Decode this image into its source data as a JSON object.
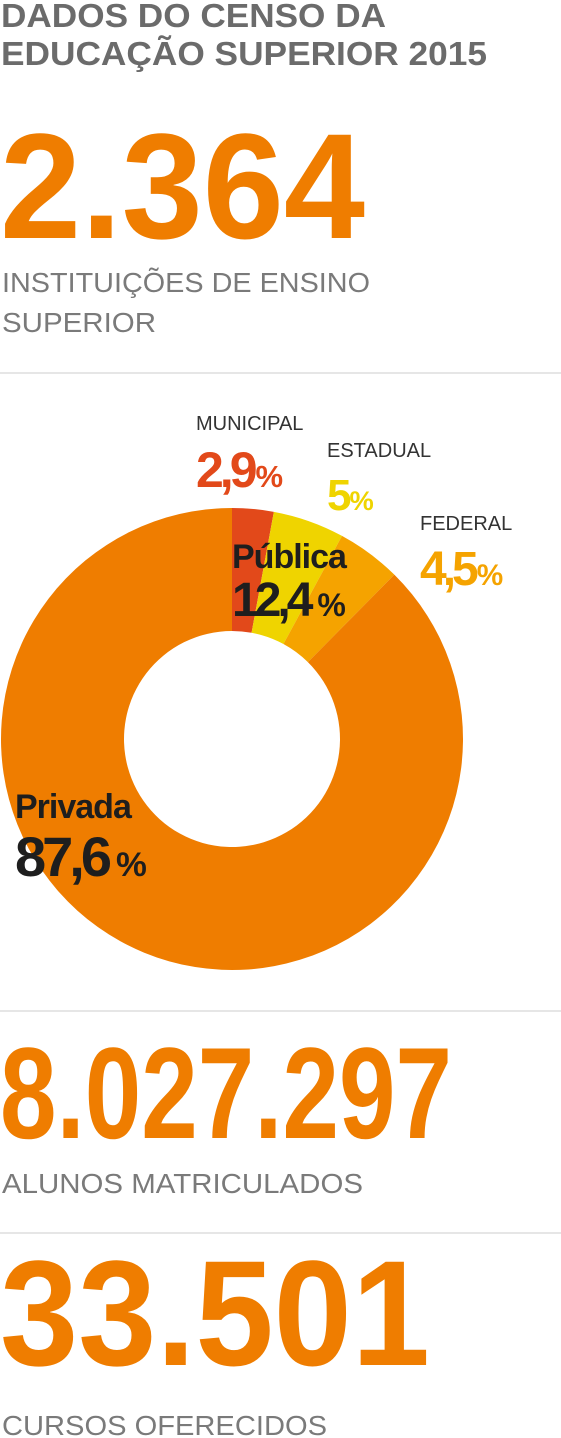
{
  "header": {
    "title_lines": [
      "DADOS DO CENSO DA",
      "EDUCAÇÃO SUPERIOR 2015"
    ]
  },
  "stats": [
    {
      "value": "2.364",
      "label_lines": [
        "INSTITUIÇÕES DE ENSINO",
        "SUPERIOR"
      ]
    },
    {
      "value": "8.027.297",
      "label_lines": [
        "ALUNOS MATRICULADOS"
      ]
    },
    {
      "value": "33.501",
      "label_lines": [
        "CURSOS OFERECIDOS"
      ]
    }
  ],
  "chart_data": {
    "type": "donut",
    "unit": "%",
    "categories": [
      "MUNICIPAL",
      "ESTADUAL",
      "FEDERAL",
      "Privada"
    ],
    "values": [
      2.9,
      5,
      4.5,
      87.6
    ],
    "value_labels": [
      "2,9",
      "5",
      "4,5",
      "87,6"
    ],
    "colors": [
      "#e2491a",
      "#efd400",
      "#f5a300",
      "#ef7d00"
    ],
    "group": {
      "name": "Pública",
      "value_label": "12,4"
    }
  }
}
